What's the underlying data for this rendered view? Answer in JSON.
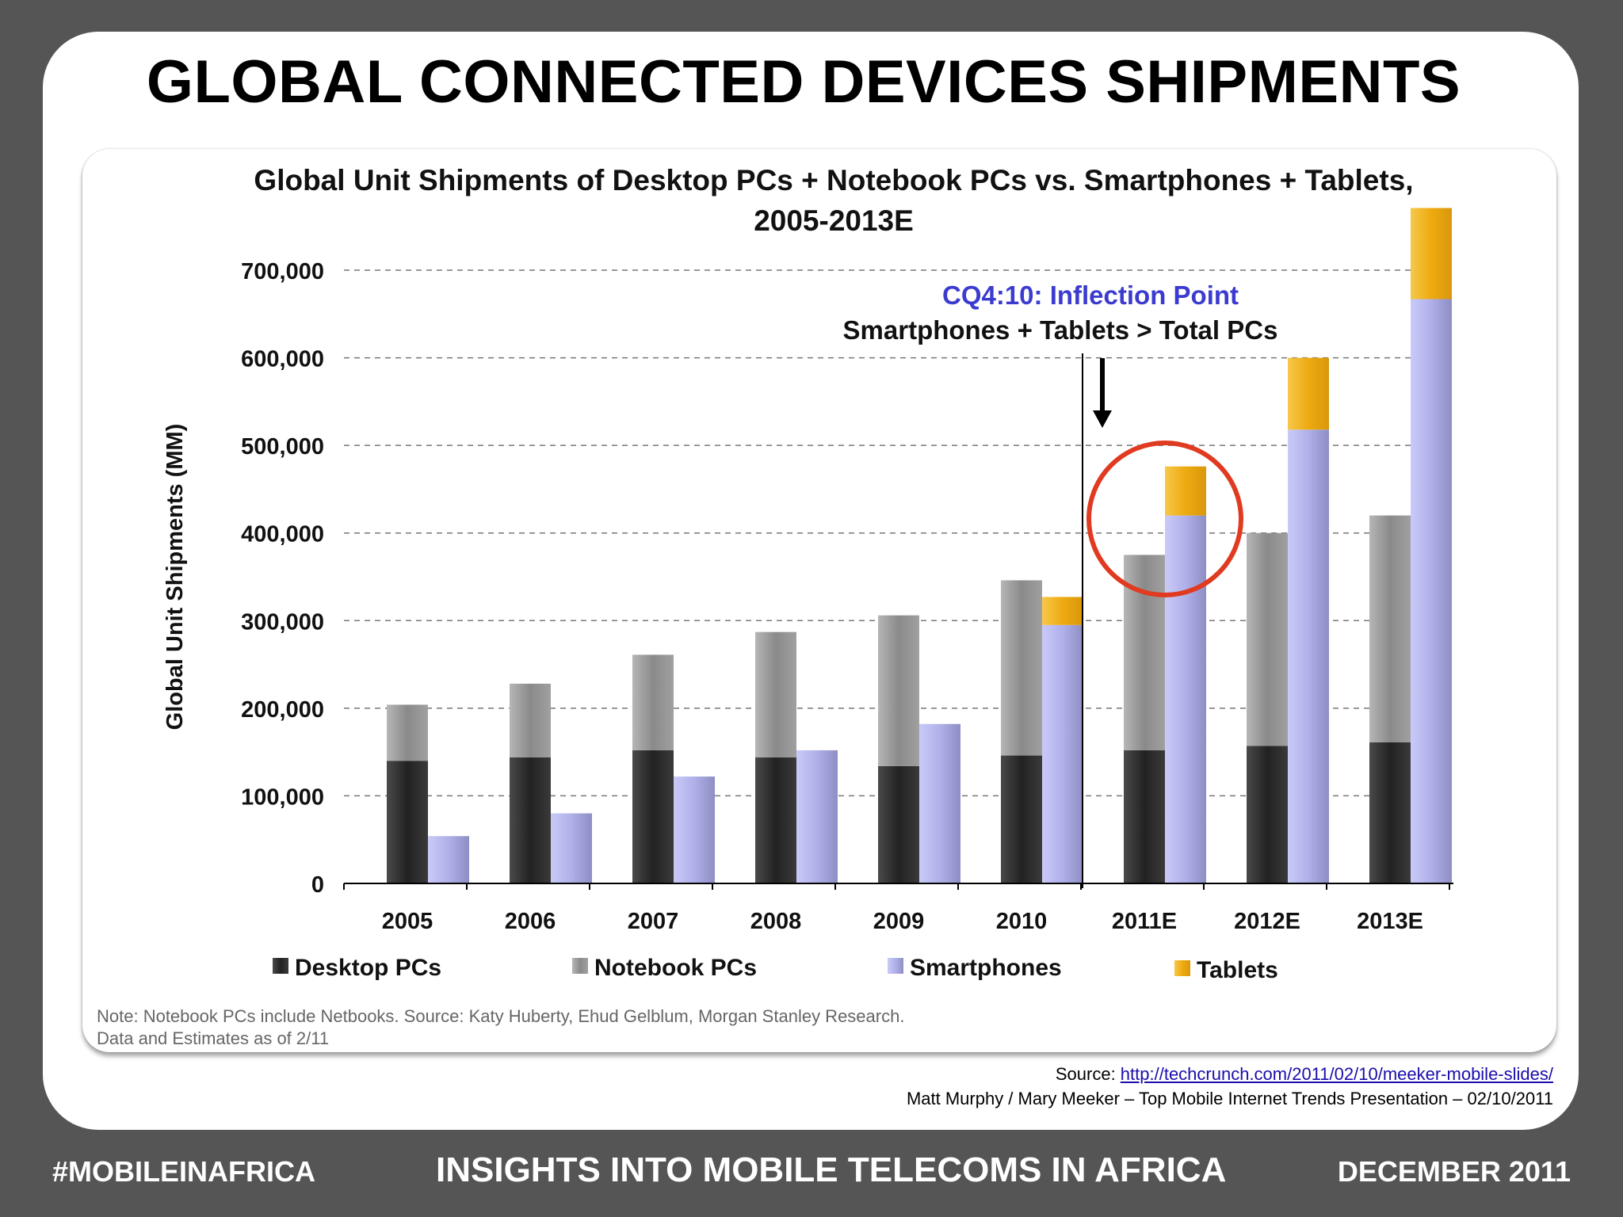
{
  "slide": {
    "title": "GLOBAL CONNECTED DEVICES SHIPMENTS",
    "footer_left": "#MOBILEINAFRICA",
    "footer_center": "INSIGHTS INTO MOBILE TELECOMS IN AFRICA",
    "footer_right": "DECEMBER 2011",
    "source_prefix": "Source: ",
    "source_link": "http://techcrunch.com/2011/02/10/meeker-mobile-slides/",
    "credit": "Matt Murphy / Mary Meeker – Top Mobile Internet Trends Presentation – 02/10/2011"
  },
  "chart_data": {
    "type": "bar",
    "title_line1": "Global Unit Shipments of Desktop PCs + Notebook PCs vs. Smartphones + Tablets,",
    "title_line2": "2005-2013E",
    "ylabel": "Global Unit Shipments (MM)",
    "ylim": [
      0,
      700000
    ],
    "yticks": [
      0,
      100000,
      200000,
      300000,
      400000,
      500000,
      600000,
      700000
    ],
    "ytick_labels": [
      "0",
      "100,000",
      "200,000",
      "300,000",
      "400,000",
      "500,000",
      "600,000",
      "700,000"
    ],
    "grid": true,
    "categories": [
      "2005",
      "2006",
      "2007",
      "2008",
      "2009",
      "2010",
      "2011E",
      "2012E",
      "2013E"
    ],
    "stacks": [
      {
        "group": "pcs",
        "series": [
          {
            "name": "Desktop PCs",
            "color": "#333333",
            "values": [
              140000,
              144000,
              152000,
              144000,
              134000,
              146000,
              152000,
              157000,
              161000
            ]
          },
          {
            "name": "Notebook PCs",
            "color": "#9c9c9c",
            "values": [
              64000,
              84000,
              109000,
              143000,
              172000,
              200000,
              223000,
              243000,
              259000
            ]
          }
        ]
      },
      {
        "group": "mobile",
        "series": [
          {
            "name": "Smartphones",
            "color": "#b4b4ee",
            "values": [
              54000,
              80000,
              122000,
              152000,
              182000,
              295000,
              420000,
              518000,
              667000
            ]
          },
          {
            "name": "Tablets",
            "color": "#f0b21a",
            "values": [
              0,
              0,
              0,
              0,
              0,
              32000,
              56000,
              82000,
              104000
            ]
          }
        ]
      }
    ],
    "legend": [
      "Desktop PCs",
      "Notebook PCs",
      "Smartphones",
      "Tablets"
    ],
    "legend_position": "bottom",
    "annotation_title": "CQ4:10: Inflection Point",
    "annotation_text": "Smartphones + Tablets > Total PCs",
    "annotation_color": "#3b3bd0",
    "highlight_color": "#e03a20",
    "note_line1": "Note: Notebook PCs include Netbooks. Source: Katy Huberty, Ehud Gelblum, Morgan Stanley Research.",
    "note_line2": "Data and Estimates as of 2/11"
  }
}
